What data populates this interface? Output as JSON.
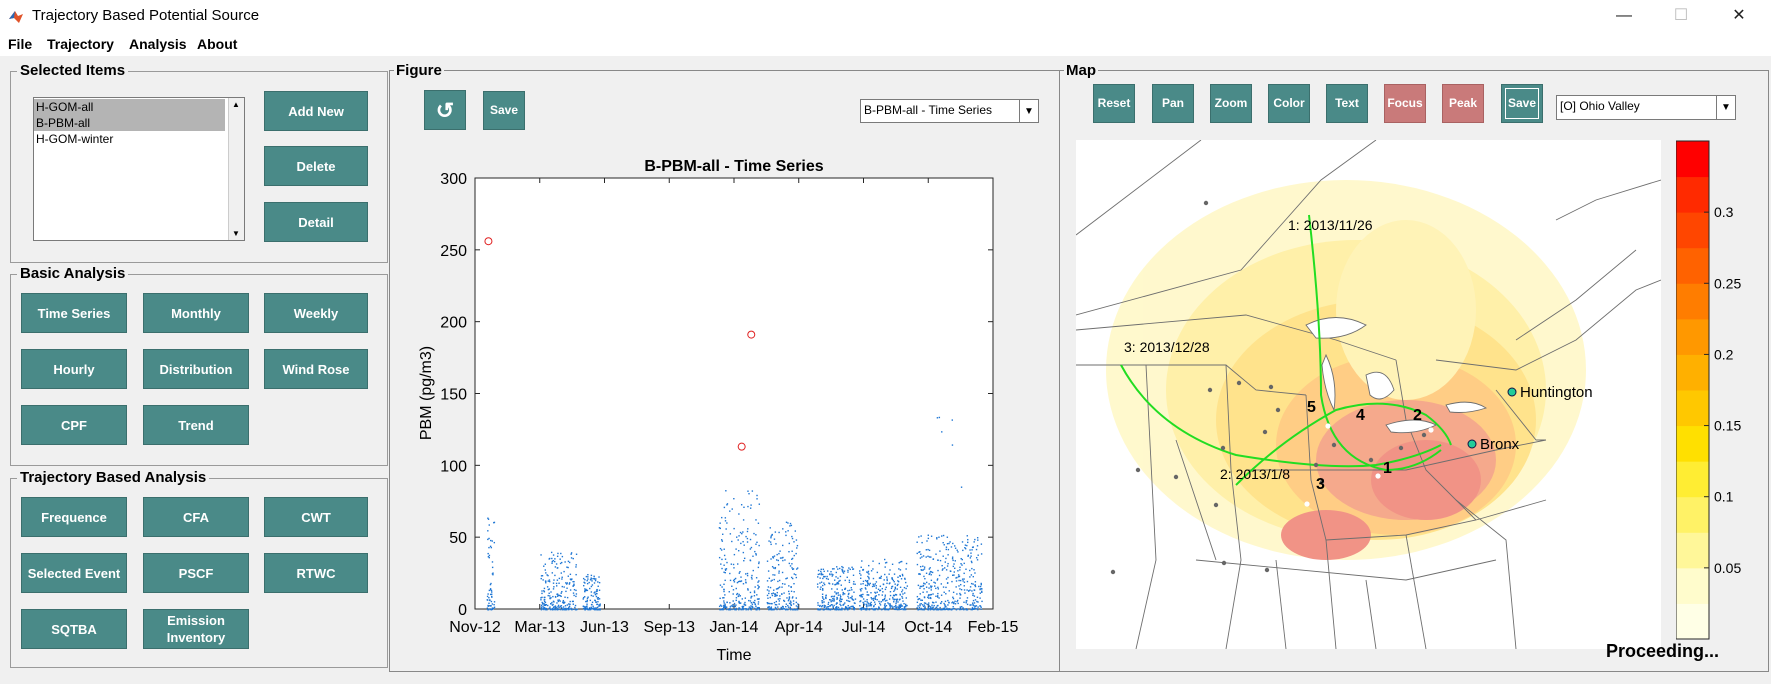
{
  "window": {
    "title": "Trajectory Based Potential Source",
    "minimize": "—",
    "maximize": "☐",
    "close": "✕"
  },
  "menu": [
    "File",
    "Trajectory",
    "Analysis",
    "About"
  ],
  "selected_items": {
    "title": "Selected Items",
    "items": [
      {
        "label": "H-GOM-all",
        "selected": true
      },
      {
        "label": "B-PBM-all",
        "selected": true
      },
      {
        "label": "H-GOM-winter",
        "selected": false
      }
    ],
    "buttons": {
      "add_new": "Add New",
      "delete": "Delete",
      "detail": "Detail"
    }
  },
  "basic_analysis": {
    "title": "Basic Analysis",
    "buttons": [
      "Time Series",
      "Monthly",
      "Weekly",
      "Hourly",
      "Distribution",
      "Wind Rose",
      "CPF",
      "Trend"
    ]
  },
  "trajectory_analysis": {
    "title": "Trajectory Based Analysis",
    "buttons": [
      "Frequence",
      "CFA",
      "CWT",
      "Selected Event",
      "PSCF",
      "RTWC",
      "SQTBA",
      "Emission Inventory"
    ]
  },
  "figure": {
    "title": "Figure",
    "refresh_icon": "refresh-icon",
    "save_label": "Save",
    "dropdown_value": "B-PBM-all - Time Series"
  },
  "map": {
    "title": "Map",
    "buttons": [
      "Reset",
      "Pan",
      "Zoom",
      "Color",
      "Text",
      "Focus",
      "Peak",
      "Save"
    ],
    "region_value": "[O] Ohio Valley",
    "trajectory_labels": [
      "1: 2013/11/26",
      "2: 2013/1/8",
      "3: 2013/12/28"
    ],
    "peak_labels": [
      "1",
      "2",
      "3",
      "4",
      "5"
    ],
    "stations": [
      "Huntington",
      "Bronx"
    ],
    "colorbar": {
      "ticks": [
        "0.3",
        "0.25",
        "0.2",
        "0.15",
        "0.1",
        "0.05"
      ],
      "colors": [
        "#ffffe6",
        "#fffccc",
        "#fff799",
        "#fff266",
        "#ffed33",
        "#ffe000",
        "#ffc800",
        "#ffb000",
        "#ff9800",
        "#ff7d00",
        "#ff6200",
        "#ff4600",
        "#ff2a00",
        "#ff0000"
      ]
    }
  },
  "status": "Proceeding...",
  "chart_data": {
    "type": "scatter",
    "title": "B-PBM-all - Time Series",
    "xlabel": "Time",
    "ylabel": "PBM (pg/m3)",
    "ylim": [
      0,
      300
    ],
    "yticks": [
      "0",
      "50",
      "100",
      "150",
      "200",
      "250",
      "300"
    ],
    "xticks": [
      "Nov-12",
      "Mar-13",
      "Jun-13",
      "Sep-13",
      "Jan-14",
      "Apr-14",
      "Jul-14",
      "Oct-14",
      "Feb-15"
    ],
    "xrange_months": [
      0,
      27
    ],
    "outliers": [
      {
        "month": 0.7,
        "value": 256
      },
      {
        "month": 14.4,
        "value": 191
      },
      {
        "month": 13.9,
        "value": 113
      }
    ],
    "clusters": [
      {
        "start": 0.6,
        "end": 1.0,
        "max": 65
      },
      {
        "start": 3.4,
        "end": 5.3,
        "max": 40
      },
      {
        "start": 5.6,
        "end": 6.5,
        "max": 25
      },
      {
        "start": 12.7,
        "end": 14.8,
        "max": 85
      },
      {
        "start": 15.2,
        "end": 16.8,
        "max": 62
      },
      {
        "start": 17.8,
        "end": 19.8,
        "max": 30
      },
      {
        "start": 20.0,
        "end": 22.5,
        "max": 35
      },
      {
        "start": 23.0,
        "end": 26.4,
        "max": 52
      },
      {
        "start": 24.0,
        "end": 25.5,
        "max": 142
      }
    ]
  }
}
